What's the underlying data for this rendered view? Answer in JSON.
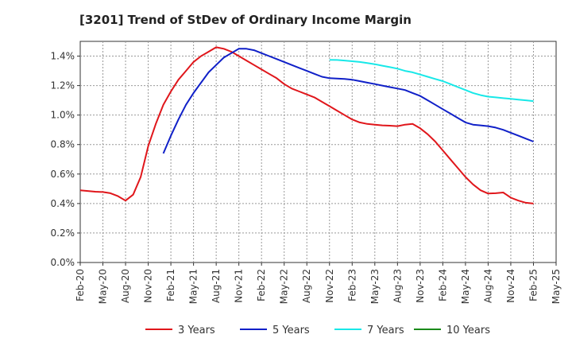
{
  "chart_data": {
    "type": "line",
    "title": "[3201]  Trend of StDev of Ordinary Income Margin",
    "xlabel": "",
    "ylabel": "",
    "x_ticks": [
      "Feb-20",
      "May-20",
      "Aug-20",
      "Nov-20",
      "Feb-21",
      "May-21",
      "Aug-21",
      "Nov-21",
      "Feb-22",
      "May-22",
      "Aug-22",
      "Nov-22",
      "Feb-23",
      "May-23",
      "Aug-23",
      "Nov-23",
      "Feb-24",
      "May-24",
      "Aug-24",
      "Nov-24",
      "Feb-25",
      "May-25"
    ],
    "y_ticks": [
      "0.0%",
      "0.2%",
      "0.4%",
      "0.6%",
      "0.8%",
      "1.0%",
      "1.2%",
      "1.4%"
    ],
    "ylim": [
      0,
      1.5
    ],
    "grid": true,
    "legend_position": "bottom",
    "series": [
      {
        "name": "3 Years",
        "color": "#e0161b",
        "values": [
          [
            "Feb-20",
            0.49
          ],
          [
            "Mar-20",
            0.485
          ],
          [
            "Apr-20",
            0.48
          ],
          [
            "May-20",
            0.478
          ],
          [
            "Jun-20",
            0.47
          ],
          [
            "Jul-20",
            0.45
          ],
          [
            "Aug-20",
            0.42
          ],
          [
            "Sep-20",
            0.46
          ],
          [
            "Oct-20",
            0.58
          ],
          [
            "Nov-20",
            0.79
          ],
          [
            "Dec-20",
            0.94
          ],
          [
            "Jan-21",
            1.07
          ],
          [
            "Feb-21",
            1.16
          ],
          [
            "Mar-21",
            1.24
          ],
          [
            "Apr-21",
            1.3
          ],
          [
            "May-21",
            1.36
          ],
          [
            "Jun-21",
            1.4
          ],
          [
            "Jul-21",
            1.43
          ],
          [
            "Aug-21",
            1.46
          ],
          [
            "Sep-21",
            1.45
          ],
          [
            "Oct-21",
            1.43
          ],
          [
            "Nov-21",
            1.4
          ],
          [
            "Dec-21",
            1.37
          ],
          [
            "Jan-22",
            1.34
          ],
          [
            "Feb-22",
            1.31
          ],
          [
            "Mar-22",
            1.28
          ],
          [
            "Apr-22",
            1.25
          ],
          [
            "May-22",
            1.21
          ],
          [
            "Jun-22",
            1.18
          ],
          [
            "Jul-22",
            1.16
          ],
          [
            "Aug-22",
            1.14
          ],
          [
            "Sep-22",
            1.12
          ],
          [
            "Oct-22",
            1.09
          ],
          [
            "Nov-22",
            1.06
          ],
          [
            "Dec-22",
            1.03
          ],
          [
            "Jan-23",
            1.0
          ],
          [
            "Feb-23",
            0.97
          ],
          [
            "Mar-23",
            0.95
          ],
          [
            "Apr-23",
            0.94
          ],
          [
            "May-23",
            0.935
          ],
          [
            "Jun-23",
            0.93
          ],
          [
            "Jul-23",
            0.928
          ],
          [
            "Aug-23",
            0.925
          ],
          [
            "Sep-23",
            0.935
          ],
          [
            "Oct-23",
            0.94
          ],
          [
            "Nov-23",
            0.91
          ],
          [
            "Dec-23",
            0.87
          ],
          [
            "Jan-24",
            0.82
          ],
          [
            "Feb-24",
            0.76
          ],
          [
            "Mar-24",
            0.7
          ],
          [
            "Apr-24",
            0.64
          ],
          [
            "May-24",
            0.58
          ],
          [
            "Jun-24",
            0.53
          ],
          [
            "Jul-24",
            0.49
          ],
          [
            "Aug-24",
            0.468
          ],
          [
            "Sep-24",
            0.47
          ],
          [
            "Oct-24",
            0.475
          ],
          [
            "Nov-24",
            0.44
          ],
          [
            "Dec-24",
            0.42
          ],
          [
            "Jan-25",
            0.405
          ],
          [
            "Feb-25",
            0.4
          ]
        ]
      },
      {
        "name": "5 Years",
        "color": "#1020c8",
        "values": [
          [
            "Jan-21",
            0.74
          ],
          [
            "Feb-21",
            0.86
          ],
          [
            "Mar-21",
            0.97
          ],
          [
            "Apr-21",
            1.07
          ],
          [
            "May-21",
            1.15
          ],
          [
            "Jun-21",
            1.22
          ],
          [
            "Jul-21",
            1.29
          ],
          [
            "Aug-21",
            1.34
          ],
          [
            "Sep-21",
            1.39
          ],
          [
            "Oct-21",
            1.42
          ],
          [
            "Nov-21",
            1.45
          ],
          [
            "Dec-21",
            1.45
          ],
          [
            "Jan-22",
            1.44
          ],
          [
            "Feb-22",
            1.42
          ],
          [
            "Mar-22",
            1.4
          ],
          [
            "Apr-22",
            1.38
          ],
          [
            "May-22",
            1.36
          ],
          [
            "Jun-22",
            1.34
          ],
          [
            "Jul-22",
            1.32
          ],
          [
            "Aug-22",
            1.3
          ],
          [
            "Sep-22",
            1.28
          ],
          [
            "Oct-22",
            1.26
          ],
          [
            "Nov-22",
            1.25
          ],
          [
            "Dec-22",
            1.248
          ],
          [
            "Jan-23",
            1.245
          ],
          [
            "Feb-23",
            1.24
          ],
          [
            "Mar-23",
            1.23
          ],
          [
            "Apr-23",
            1.22
          ],
          [
            "May-23",
            1.21
          ],
          [
            "Jun-23",
            1.2
          ],
          [
            "Jul-23",
            1.19
          ],
          [
            "Aug-23",
            1.18
          ],
          [
            "Sep-23",
            1.17
          ],
          [
            "Oct-23",
            1.15
          ],
          [
            "Nov-23",
            1.13
          ],
          [
            "Dec-23",
            1.1
          ],
          [
            "Jan-24",
            1.07
          ],
          [
            "Feb-24",
            1.04
          ],
          [
            "Mar-24",
            1.01
          ],
          [
            "Apr-24",
            0.98
          ],
          [
            "May-24",
            0.95
          ],
          [
            "Jun-24",
            0.935
          ],
          [
            "Jul-24",
            0.93
          ],
          [
            "Aug-24",
            0.925
          ],
          [
            "Sep-24",
            0.915
          ],
          [
            "Oct-24",
            0.9
          ],
          [
            "Nov-24",
            0.88
          ],
          [
            "Dec-24",
            0.86
          ],
          [
            "Jan-25",
            0.84
          ],
          [
            "Feb-25",
            0.82
          ]
        ]
      },
      {
        "name": "7 Years",
        "color": "#18e8e8",
        "values": [
          [
            "Nov-22",
            1.375
          ],
          [
            "Dec-22",
            1.374
          ],
          [
            "Jan-23",
            1.37
          ],
          [
            "Feb-23",
            1.365
          ],
          [
            "Mar-23",
            1.36
          ],
          [
            "Apr-23",
            1.353
          ],
          [
            "May-23",
            1.345
          ],
          [
            "Jun-23",
            1.335
          ],
          [
            "Jul-23",
            1.325
          ],
          [
            "Aug-23",
            1.315
          ],
          [
            "Sep-23",
            1.3
          ],
          [
            "Oct-23",
            1.29
          ],
          [
            "Nov-23",
            1.275
          ],
          [
            "Dec-23",
            1.26
          ],
          [
            "Jan-24",
            1.245
          ],
          [
            "Feb-24",
            1.23
          ],
          [
            "Mar-24",
            1.21
          ],
          [
            "Apr-24",
            1.19
          ],
          [
            "May-24",
            1.17
          ],
          [
            "Jun-24",
            1.15
          ],
          [
            "Jul-24",
            1.135
          ],
          [
            "Aug-24",
            1.125
          ],
          [
            "Sep-24",
            1.12
          ],
          [
            "Oct-24",
            1.115
          ],
          [
            "Nov-24",
            1.11
          ],
          [
            "Dec-24",
            1.105
          ],
          [
            "Jan-25",
            1.1
          ],
          [
            "Feb-25",
            1.095
          ]
        ]
      },
      {
        "name": "10 Years",
        "color": "#1a8a1a",
        "values": []
      }
    ]
  }
}
